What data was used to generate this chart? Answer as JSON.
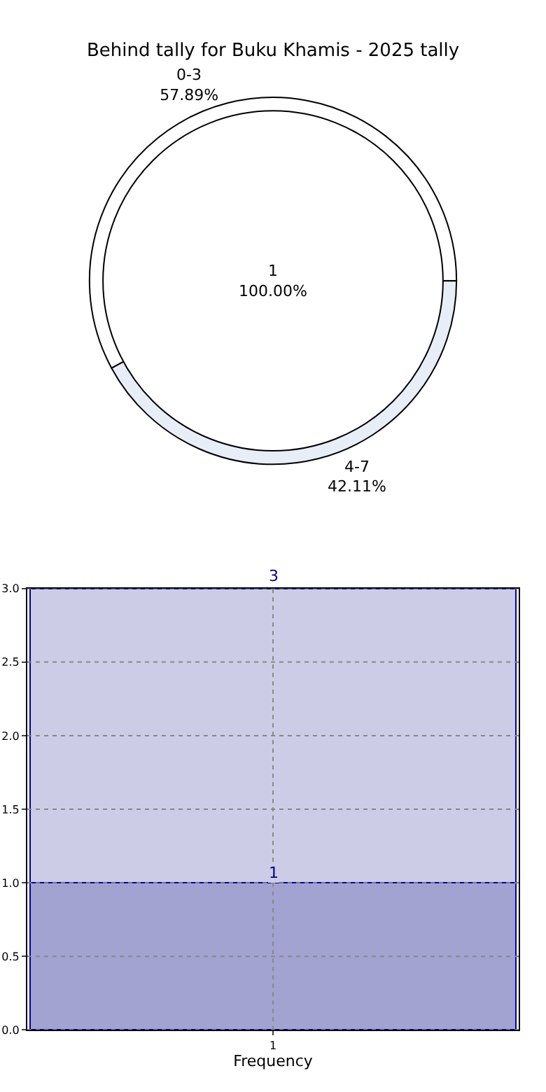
{
  "chart_data": [
    {
      "type": "pie",
      "title": "Behind tally for Buku Khamis - 2025 tally",
      "categories": [
        "1"
      ],
      "values": [
        100
      ],
      "colors": [
        "#ffffff"
      ],
      "value_labels": [
        "100.00%"
      ]
    },
    {
      "type": "donut",
      "categories": [
        "0-3",
        "4-7"
      ],
      "values": [
        57.89,
        42.11
      ],
      "colors": [
        "#ffffff",
        "#e8eef8"
      ],
      "value_labels": [
        "57.89%",
        "42.11%"
      ]
    },
    {
      "type": "bar",
      "categories": [
        "1"
      ],
      "xlabel": "Frequency",
      "stacked": true,
      "totals": [
        "3"
      ],
      "series": [
        {
          "color": "#a3a3d1",
          "values": [
            1
          ],
          "value_labels": [
            "1"
          ]
        },
        {
          "color": "#ccccE6",
          "values": [
            2
          ],
          "value_labels": [
            null
          ]
        }
      ],
      "ylim": [
        0,
        3
      ],
      "yticks": [
        {
          "value": 0,
          "label": "0.0"
        },
        {
          "value": 0.5,
          "label": "0.5"
        },
        {
          "value": 1,
          "label": "1.0"
        },
        {
          "value": 1.5,
          "label": "1.5"
        },
        {
          "value": 2,
          "label": "2.0"
        },
        {
          "value": 2.5,
          "label": "2.5"
        },
        {
          "value": 3,
          "label": "3.0"
        }
      ],
      "grid": true
    }
  ]
}
